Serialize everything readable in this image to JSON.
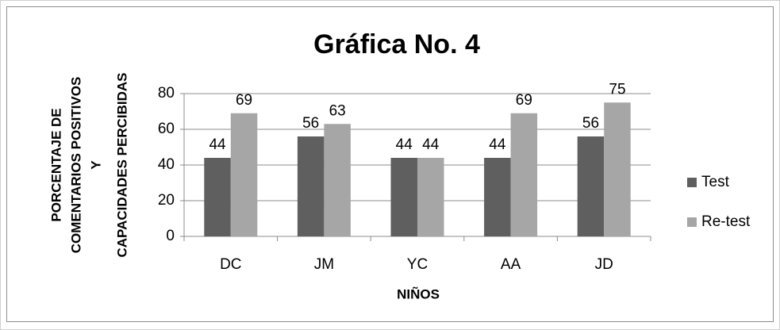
{
  "chart_data": {
    "type": "bar",
    "title": "Gráfica No. 4",
    "y_label": [
      "PORCENTAJE DE",
      "COMENTARIOS POSITIVOS",
      "Y",
      "CAPACIDADES PERCIBIDAS"
    ],
    "x_label": "NIÑOS",
    "categories": [
      "DC",
      "JM",
      "YC",
      "AA",
      "JD"
    ],
    "series": [
      {
        "name": "Test",
        "color": "#5f5f5f",
        "values": [
          44,
          56,
          44,
          44,
          56
        ]
      },
      {
        "name": "Re-test",
        "color": "#a6a6a6",
        "values": [
          69,
          63,
          44,
          69,
          75
        ]
      }
    ],
    "ylim": [
      0,
      80
    ],
    "yticks": [
      0,
      20,
      40,
      60,
      80
    ],
    "grid": true,
    "legend": "right"
  }
}
